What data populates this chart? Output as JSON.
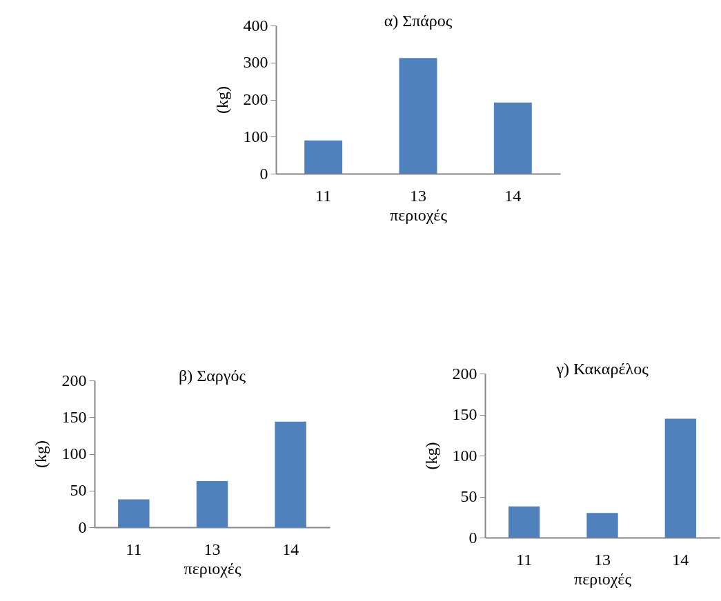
{
  "chart_data": [
    {
      "type": "bar",
      "title": "α) Σπάρος",
      "xlabel": "περιοχές",
      "ylabel": "(kg)",
      "categories": [
        "11",
        "13",
        "14"
      ],
      "values": [
        90,
        312,
        192
      ],
      "color": "#4f81bd",
      "ylim": [
        0,
        400
      ],
      "yticks": [
        0,
        100,
        200,
        300,
        400
      ]
    },
    {
      "type": "bar",
      "title": "β) Σαργός",
      "xlabel": "περιοχές",
      "ylabel": "(kg)",
      "categories": [
        "11",
        "13",
        "14"
      ],
      "values": [
        38,
        63,
        144
      ],
      "color": "#4f81bd",
      "ylim": [
        0,
        200
      ],
      "yticks": [
        0,
        50,
        100,
        150,
        200
      ]
    },
    {
      "type": "bar",
      "title": "γ) Κακαρέλος",
      "xlabel": "περιοχές",
      "ylabel": "(kg)",
      "categories": [
        "11",
        "13",
        "14"
      ],
      "values": [
        38,
        30,
        145
      ],
      "color": "#4f81bd",
      "ylim": [
        0,
        200
      ],
      "yticks": [
        0,
        50,
        100,
        150,
        200
      ]
    }
  ]
}
